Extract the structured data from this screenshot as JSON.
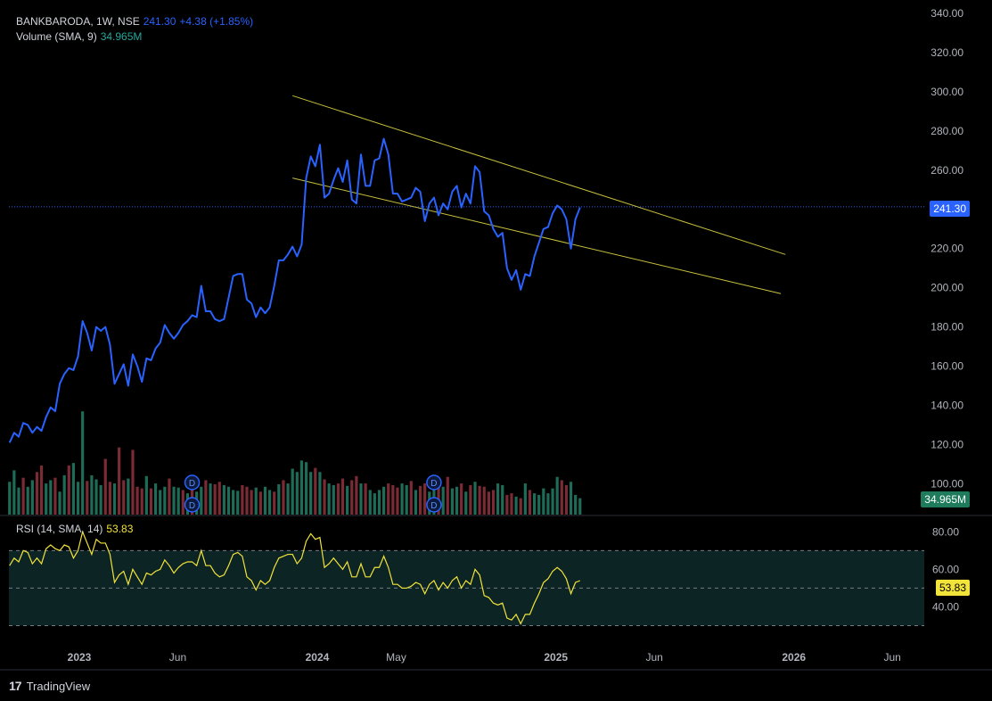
{
  "header": {
    "symbol_line": "BANKBARODA, 1W, NSE",
    "last": "241.30",
    "change": "+4.38 (+1.85%)",
    "volume_label": "Volume (SMA, 9)",
    "volume_value": "34.965M"
  },
  "rsi_header": {
    "label": "RSI (14, SMA, 14)",
    "value": "53.83"
  },
  "price_tag": "241.30",
  "volume_tag": "34.965M",
  "rsi_tag": "53.83",
  "brand": {
    "logo": "17",
    "name": "TradingView"
  },
  "colors": {
    "price": "#2962ff",
    "channel": "#c8c03c",
    "up": "#1e6b57",
    "down": "#7a2b34",
    "rsi": "#f2e33a",
    "rsi_band": "#0c2424"
  },
  "chart_data": {
    "type": "line",
    "symbol": "BANKBARODA",
    "interval": "1W",
    "price_axis": {
      "ticks": [
        340,
        320,
        300,
        280,
        260,
        240,
        220,
        200,
        180,
        160,
        140,
        120,
        100
      ],
      "tick_labels": [
        "340.00",
        "320.00",
        "300.00",
        "280.00",
        "260.00",
        "",
        "220.00",
        "200.00",
        "180.00",
        "160.00",
        "140.00",
        "120.00",
        "100.00"
      ],
      "ylim": [
        92,
        340
      ]
    },
    "time_axis": {
      "labels": [
        "2023",
        "Jun",
        "2024",
        "May",
        "2025",
        "Jun",
        "2026",
        "Jun"
      ],
      "positions": [
        "2023-01-01",
        "2023-06-01",
        "2024-01-01",
        "2024-05-01",
        "2025-01-01",
        "2025-06-01",
        "2026-01-01",
        "2026-06-01"
      ],
      "xlim": [
        "2022-09-15",
        "2026-07-20"
      ]
    },
    "price_series": {
      "name": "BANKBARODA",
      "start": "2022-09-16",
      "step_days": 7,
      "values": [
        121,
        126,
        124,
        131,
        130,
        126,
        129,
        127,
        134,
        139,
        137,
        151,
        156,
        159,
        158,
        165,
        183,
        177,
        168,
        180,
        178,
        180,
        171,
        151,
        156,
        161,
        150,
        166,
        160,
        152,
        164,
        163,
        169,
        172,
        181,
        177,
        174,
        177,
        181,
        183,
        186,
        185,
        201,
        188,
        188,
        184,
        183,
        184,
        195,
        206,
        207,
        207,
        194,
        192,
        185,
        190,
        187,
        190,
        201,
        214,
        214,
        217,
        221,
        216,
        222,
        256,
        267,
        262,
        273,
        246,
        248,
        255,
        261,
        254,
        265,
        245,
        243,
        268,
        252,
        252,
        265,
        266,
        276,
        268,
        248,
        248,
        244,
        245,
        246,
        251,
        249,
        234,
        243,
        246,
        237,
        243,
        240,
        249,
        252,
        241,
        248,
        243,
        262,
        259,
        239,
        237,
        230,
        226,
        228,
        210,
        204,
        209,
        199,
        207,
        206,
        216,
        223,
        230,
        231,
        238,
        242,
        240,
        235,
        220,
        235,
        241
      ]
    },
    "current_price": 241.3,
    "channel_lines": [
      {
        "start": {
          "date": "2023-11-24",
          "value": 298
        },
        "end": {
          "date": "2025-12-19",
          "value": 217
        }
      },
      {
        "start": {
          "date": "2023-11-24",
          "value": 256
        },
        "end": {
          "date": "2025-12-12",
          "value": 197
        }
      }
    ],
    "volume_series": {
      "name": "Volume",
      "scale_max": 160,
      "values": [
        40,
        54,
        33,
        45,
        34,
        42,
        52,
        60,
        38,
        42,
        45,
        28,
        48,
        60,
        63,
        40,
        126,
        41,
        48,
        43,
        36,
        68,
        40,
        38,
        82,
        42,
        44,
        79,
        34,
        32,
        47,
        32,
        38,
        30,
        34,
        44,
        34,
        33,
        30,
        26,
        34,
        28,
        34,
        42,
        38,
        37,
        40,
        36,
        34,
        30,
        29,
        36,
        34,
        30,
        33,
        28,
        34,
        30,
        28,
        37,
        42,
        38,
        56,
        52,
        66,
        64,
        52,
        57,
        52,
        43,
        38,
        36,
        38,
        44,
        35,
        42,
        47,
        38,
        38,
        30,
        26,
        30,
        34,
        38,
        36,
        33,
        38,
        36,
        41,
        30,
        35,
        38,
        28,
        42,
        36,
        34,
        46,
        32,
        34,
        38,
        28,
        36,
        40,
        35,
        34,
        28,
        30,
        38,
        36,
        24,
        26,
        22,
        20,
        38,
        30,
        26,
        24,
        32,
        26,
        32,
        46,
        42,
        36,
        40,
        24,
        20
      ],
      "up": [
        1,
        1,
        1,
        0,
        1,
        1,
        0,
        0,
        1,
        1,
        0,
        1,
        1,
        0,
        1,
        1,
        1,
        0,
        1,
        1,
        1,
        0,
        0,
        1,
        0,
        0,
        1,
        0,
        0,
        0,
        1,
        0,
        1,
        1,
        1,
        0,
        1,
        1,
        0,
        1,
        0,
        1,
        1,
        0,
        1,
        0,
        0,
        1,
        1,
        1,
        1,
        0,
        0,
        0,
        1,
        0,
        1,
        1,
        0,
        1,
        0,
        1,
        1,
        1,
        1,
        1,
        1,
        0,
        1,
        0,
        1,
        1,
        0,
        0,
        1,
        0,
        0,
        1,
        0,
        1,
        1,
        1,
        1,
        0,
        0,
        0,
        1,
        1,
        0,
        1,
        0,
        0,
        1,
        1,
        0,
        1,
        0,
        1,
        1,
        0,
        1,
        0,
        1,
        0,
        0,
        0,
        0,
        1,
        1,
        0,
        0,
        1,
        0,
        1,
        0,
        1,
        1,
        1,
        1,
        1,
        1,
        0,
        0,
        1,
        1,
        1
      ],
      "dividend_markers": [
        "2023-06-23",
        "2024-06-28"
      ]
    },
    "rsi": {
      "name": "RSI (14, SMA, 14)",
      "ylim": [
        25,
        83
      ],
      "ticks": [
        80,
        60,
        40
      ],
      "bands": [
        70,
        50,
        30
      ],
      "values": [
        62,
        66,
        64,
        70,
        69,
        63,
        66,
        63,
        71,
        73,
        71,
        70,
        73,
        72,
        66,
        70,
        80,
        74,
        68,
        76,
        74,
        74,
        68,
        53,
        57,
        59,
        52,
        60,
        56,
        52,
        58,
        57,
        59,
        60,
        65,
        62,
        58,
        61,
        63,
        64,
        64,
        62,
        70,
        62,
        62,
        58,
        56,
        57,
        62,
        68,
        69,
        67,
        56,
        54,
        49,
        54,
        52,
        54,
        61,
        66,
        67,
        68,
        68,
        63,
        66,
        75,
        79,
        76,
        77,
        61,
        63,
        66,
        63,
        60,
        64,
        56,
        56,
        63,
        56,
        56,
        61,
        61,
        67,
        61,
        52,
        52,
        50,
        50,
        51,
        53,
        52,
        47,
        52,
        54,
        49,
        53,
        50,
        54,
        56,
        50,
        54,
        52,
        60,
        57,
        46,
        45,
        42,
        41,
        42,
        34,
        33,
        36,
        31,
        36,
        36,
        42,
        47,
        53,
        55,
        59,
        61,
        59,
        55,
        47,
        53,
        54
      ]
    }
  }
}
